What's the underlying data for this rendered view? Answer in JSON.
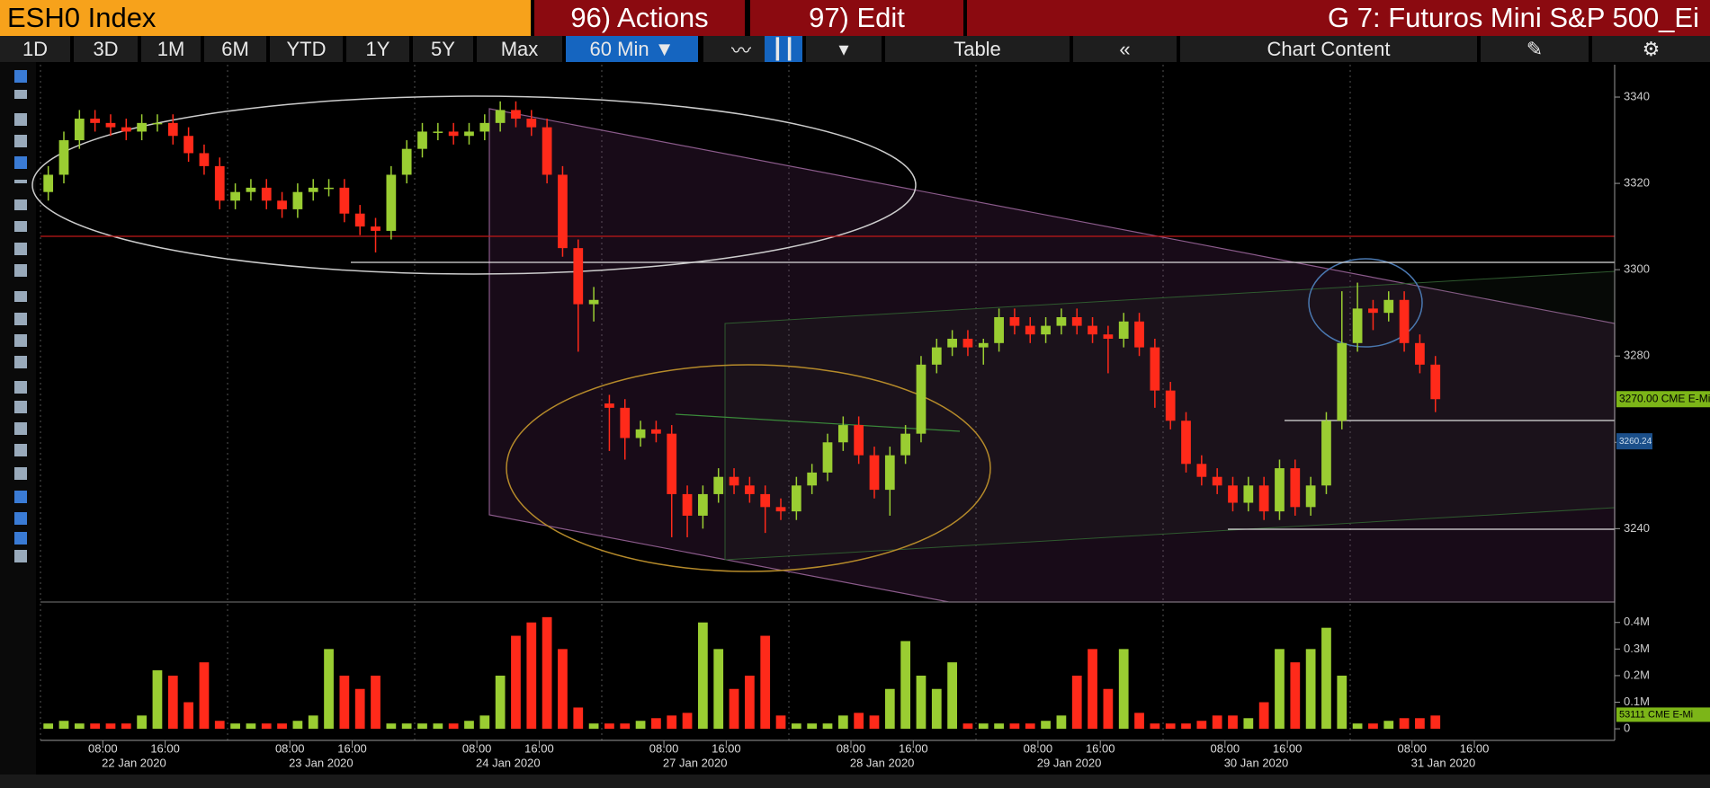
{
  "header": {
    "title": "ESH0 Index",
    "actions": "96) Actions",
    "edit": "97) Edit",
    "chart_label": "G 7: Futuros Mini S&P 500_Ei"
  },
  "toolbar": {
    "periods": [
      "1D",
      "3D",
      "1M",
      "6M",
      "YTD",
      "1Y",
      "5Y",
      "Max"
    ],
    "interval": "60 Min",
    "table": "Table",
    "chart_content": "Chart Content"
  },
  "chart_data": [
    {
      "type": "candlestick",
      "up_color": "#9acd32",
      "down_color": "#ff2a1a",
      "xlim": [
        0,
        101
      ],
      "ylim": [
        3223,
        3347.5
      ],
      "yticks": [
        3240,
        3260,
        3280,
        3300,
        3320,
        3340
      ],
      "open": [
        3318,
        3322,
        3330,
        3335,
        3334,
        3333,
        3332,
        3334,
        3334,
        3331,
        3327,
        3324,
        3316,
        3318,
        3319,
        3316,
        3314,
        3318,
        3319,
        3319,
        3313,
        3310,
        3309,
        3322,
        3328,
        3332,
        3332,
        3331,
        3332,
        3334,
        3337,
        3335,
        3333,
        3322,
        3305,
        3292,
        3269,
        3268,
        3261,
        3263,
        3262,
        3248,
        3243,
        3248,
        3252,
        3250,
        3248,
        3245,
        3244,
        3250,
        3253,
        3260,
        3264,
        3257,
        3249,
        3257,
        3262,
        3278,
        3282,
        3284,
        3282,
        3283,
        3289,
        3287,
        3285,
        3287,
        3289,
        3287,
        3285,
        3284,
        3288,
        3282,
        3272,
        3265,
        3255,
        3252,
        3250,
        3246,
        3250,
        3244,
        3254,
        3245,
        3250,
        3265,
        3283,
        3291,
        3290,
        3293,
        3283,
        3278
      ],
      "high": [
        3324,
        3332,
        3337,
        3337,
        3336,
        3335,
        3336,
        3336,
        3336,
        3333,
        3329,
        3326,
        3320,
        3321,
        3321,
        3318,
        3320,
        3321,
        3321,
        3321,
        3315,
        3312,
        3324,
        3330,
        3334,
        3334,
        3334,
        3334,
        3336,
        3339,
        3339,
        3337,
        3335,
        3324,
        3307,
        3296,
        3271,
        3270,
        3265,
        3265,
        3264,
        3250,
        3250,
        3254,
        3254,
        3252,
        3250,
        3247,
        3252,
        3255,
        3262,
        3266,
        3266,
        3259,
        3259,
        3264,
        3280,
        3284,
        3286,
        3286,
        3284,
        3291,
        3291,
        3289,
        3289,
        3291,
        3291,
        3289,
        3287,
        3290,
        3290,
        3284,
        3274,
        3267,
        3257,
        3254,
        3252,
        3252,
        3252,
        3256,
        3256,
        3252,
        3267,
        3295,
        3297,
        3293,
        3295,
        3295,
        3285,
        3280
      ],
      "low": [
        3316,
        3320,
        3328,
        3332,
        3331,
        3330,
        3330,
        3332,
        3329,
        3325,
        3322,
        3314,
        3314,
        3316,
        3314,
        3312,
        3312,
        3316,
        3317,
        3311,
        3308,
        3304,
        3307,
        3320,
        3326,
        3330,
        3329,
        3329,
        3330,
        3332,
        3333,
        3331,
        3320,
        3303,
        3281,
        3288,
        3258,
        3256,
        3259,
        3260,
        3238,
        3238,
        3240,
        3246,
        3248,
        3246,
        3239,
        3242,
        3242,
        3248,
        3251,
        3258,
        3255,
        3247,
        3243,
        3255,
        3260,
        3276,
        3280,
        3280,
        3278,
        3281,
        3285,
        3283,
        3283,
        3285,
        3285,
        3283,
        3276,
        3282,
        3280,
        3268,
        3263,
        3253,
        3250,
        3248,
        3244,
        3244,
        3242,
        3242,
        3243,
        3243,
        3248,
        3263,
        3281,
        3286,
        3288,
        3281,
        3276,
        3267
      ],
      "close": [
        3322,
        3330,
        3335,
        3334,
        3333,
        3332,
        3334,
        3334,
        3331,
        3327,
        3324,
        3316,
        3318,
        3319,
        3316,
        3314,
        3318,
        3319,
        3319,
        3313,
        3310,
        3309,
        3322,
        3328,
        3332,
        3332,
        3331,
        3332,
        3334,
        3337,
        3335,
        3333,
        3322,
        3305,
        3292,
        3293,
        3268,
        3261,
        3263,
        3262,
        3248,
        3243,
        3248,
        3252,
        3250,
        3248,
        3245,
        3244,
        3250,
        3253,
        3260,
        3264,
        3257,
        3249,
        3257,
        3262,
        3278,
        3282,
        3284,
        3282,
        3283,
        3289,
        3287,
        3285,
        3287,
        3289,
        3287,
        3285,
        3284,
        3288,
        3282,
        3272,
        3265,
        3255,
        3252,
        3250,
        3246,
        3250,
        3244,
        3254,
        3245,
        3250,
        3265,
        3283,
        3291,
        3290,
        3293,
        3283,
        3278,
        3270
      ],
      "price_labels": [
        {
          "value": 3270,
          "label": "3270.00 CME E-Mi"
        },
        {
          "value": 3260.24,
          "label": "3260.24"
        }
      ]
    },
    {
      "type": "bar",
      "xlim": [
        0,
        101
      ],
      "ylim": [
        -0.03,
        0.46
      ],
      "yticks": [
        {
          "value": 0.4,
          "label": "0.4M"
        },
        {
          "value": 0.3,
          "label": "0.3M"
        },
        {
          "value": 0.2,
          "label": "0.2M"
        },
        {
          "value": 0.1,
          "label": "0.1M"
        },
        0
      ],
      "values": [
        0.02,
        0.03,
        0.02,
        0.02,
        0.02,
        0.02,
        0.05,
        0.22,
        0.2,
        0.1,
        0.25,
        0.03,
        0.02,
        0.02,
        0.02,
        0.02,
        0.03,
        0.05,
        0.3,
        0.2,
        0.15,
        0.2,
        0.02,
        0.02,
        0.02,
        0.02,
        0.02,
        0.03,
        0.05,
        0.2,
        0.35,
        0.4,
        0.42,
        0.3,
        0.08,
        0.02,
        0.02,
        0.02,
        0.03,
        0.04,
        0.05,
        0.06,
        0.4,
        0.3,
        0.15,
        0.2,
        0.35,
        0.05,
        0.02,
        0.02,
        0.02,
        0.05,
        0.06,
        0.05,
        0.15,
        0.33,
        0.2,
        0.15,
        0.25,
        0.02,
        0.02,
        0.02,
        0.02,
        0.02,
        0.03,
        0.05,
        0.2,
        0.3,
        0.15,
        0.3,
        0.06,
        0.02,
        0.02,
        0.02,
        0.03,
        0.05,
        0.05,
        0.04,
        0.1,
        0.3,
        0.25,
        0.3,
        0.38,
        0.2,
        0.02,
        0.02,
        0.03,
        0.04,
        0.04,
        0.05
      ],
      "last_label": {
        "value": 0.053111,
        "label": "53111 CME E-Mi"
      },
      "xticks": [
        {
          "value": 4,
          "label": "08:00"
        },
        {
          "value": 8,
          "label": "16:00"
        },
        {
          "value": 16,
          "label": "08:00"
        },
        {
          "value": 20,
          "label": "16:00"
        },
        {
          "value": 28,
          "label": "08:00"
        },
        {
          "value": 32,
          "label": "16:00"
        },
        {
          "value": 40,
          "label": "08:00"
        },
        {
          "value": 44,
          "label": "16:00"
        },
        {
          "value": 52,
          "label": "08:00"
        },
        {
          "value": 56,
          "label": "16:00"
        },
        {
          "value": 64,
          "label": "08:00"
        },
        {
          "value": 68,
          "label": "16:00"
        },
        {
          "value": 76,
          "label": "08:00"
        },
        {
          "value": 80,
          "label": "16:00"
        },
        {
          "value": 88,
          "label": "08:00"
        },
        {
          "value": 92,
          "label": "16:00"
        }
      ],
      "date_ticks": [
        {
          "value": 6,
          "label": "22 Jan 2020"
        },
        {
          "value": 18,
          "label": "23 Jan 2020"
        },
        {
          "value": 30,
          "label": "24 Jan 2020"
        },
        {
          "value": 42,
          "label": "27 Jan 2020"
        },
        {
          "value": 54,
          "label": "28 Jan 2020"
        },
        {
          "value": 66,
          "label": "29 Jan 2020"
        },
        {
          "value": 78,
          "label": "30 Jan 2020"
        },
        {
          "value": 90,
          "label": "31 Jan 2020"
        }
      ]
    }
  ]
}
